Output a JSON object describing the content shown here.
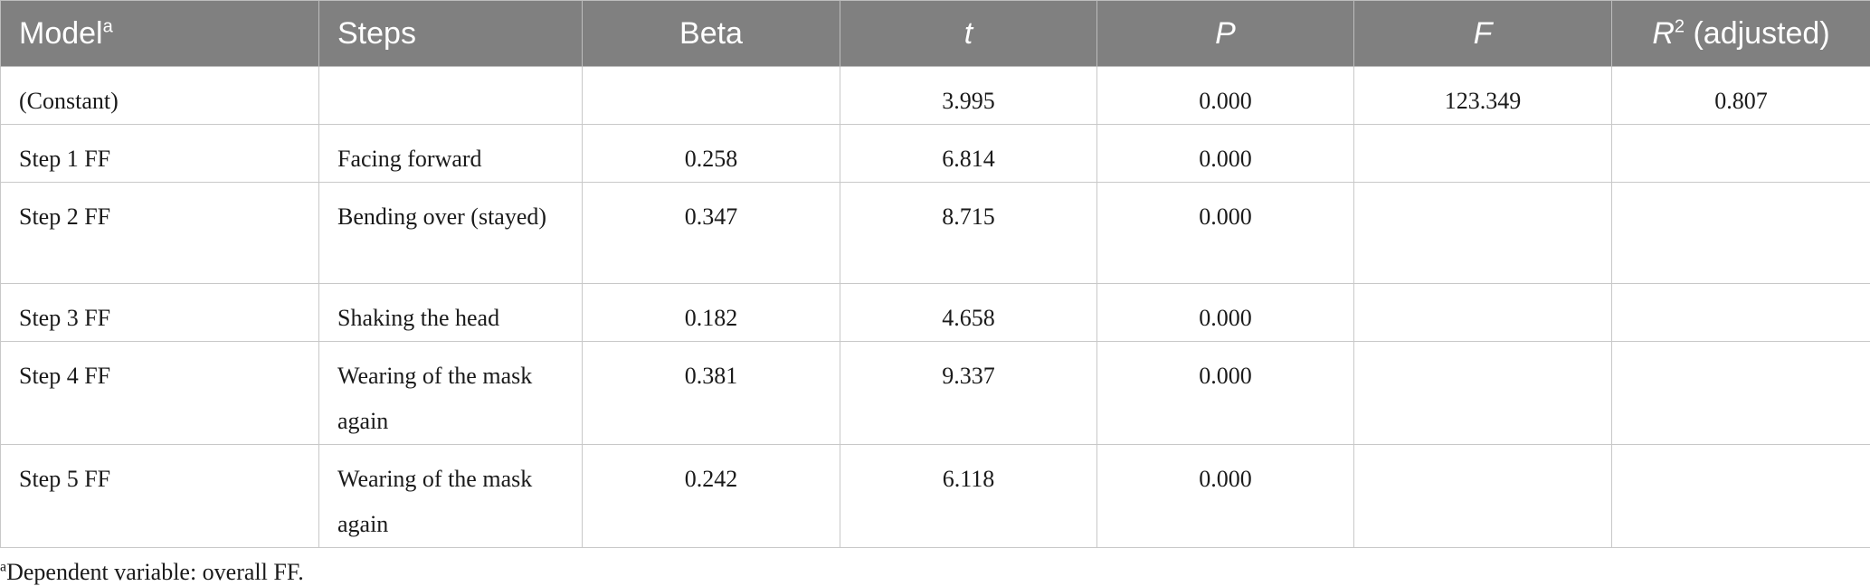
{
  "table": {
    "headers": {
      "model": "Model",
      "model_sup": "a",
      "steps": "Steps",
      "beta": "Beta",
      "t": "t",
      "p": "P",
      "f": "F",
      "r2_r": "R",
      "r2_sup": "2",
      "r2_rest": " (adjusted)"
    },
    "rows": [
      {
        "model": "(Constant)",
        "steps": "",
        "beta": "",
        "t": "3.995",
        "p": "0.000",
        "f": "123.349",
        "r2": "0.807"
      },
      {
        "model": "Step 1 FF",
        "steps": "Facing forward",
        "beta": "0.258",
        "t": "6.814",
        "p": "0.000",
        "f": "",
        "r2": ""
      },
      {
        "model": "Step 2 FF",
        "steps": "Bending over (stayed)",
        "beta": "0.347",
        "t": "8.715",
        "p": "0.000",
        "f": "",
        "r2": ""
      },
      {
        "model": "Step 3 FF",
        "steps": "Shaking the head",
        "beta": "0.182",
        "t": "4.658",
        "p": "0.000",
        "f": "",
        "r2": ""
      },
      {
        "model": "Step 4 FF",
        "steps": "Wearing of the mask again",
        "beta": "0.381",
        "t": "9.337",
        "p": "0.000",
        "f": "",
        "r2": ""
      },
      {
        "model": "Step 5 FF",
        "steps": "Wearing of the mask again",
        "beta": "0.242",
        "t": "6.118",
        "p": "0.000",
        "f": "",
        "r2": ""
      }
    ]
  },
  "footnote": {
    "marker": "a",
    "text": "Dependent variable: overall FF."
  }
}
